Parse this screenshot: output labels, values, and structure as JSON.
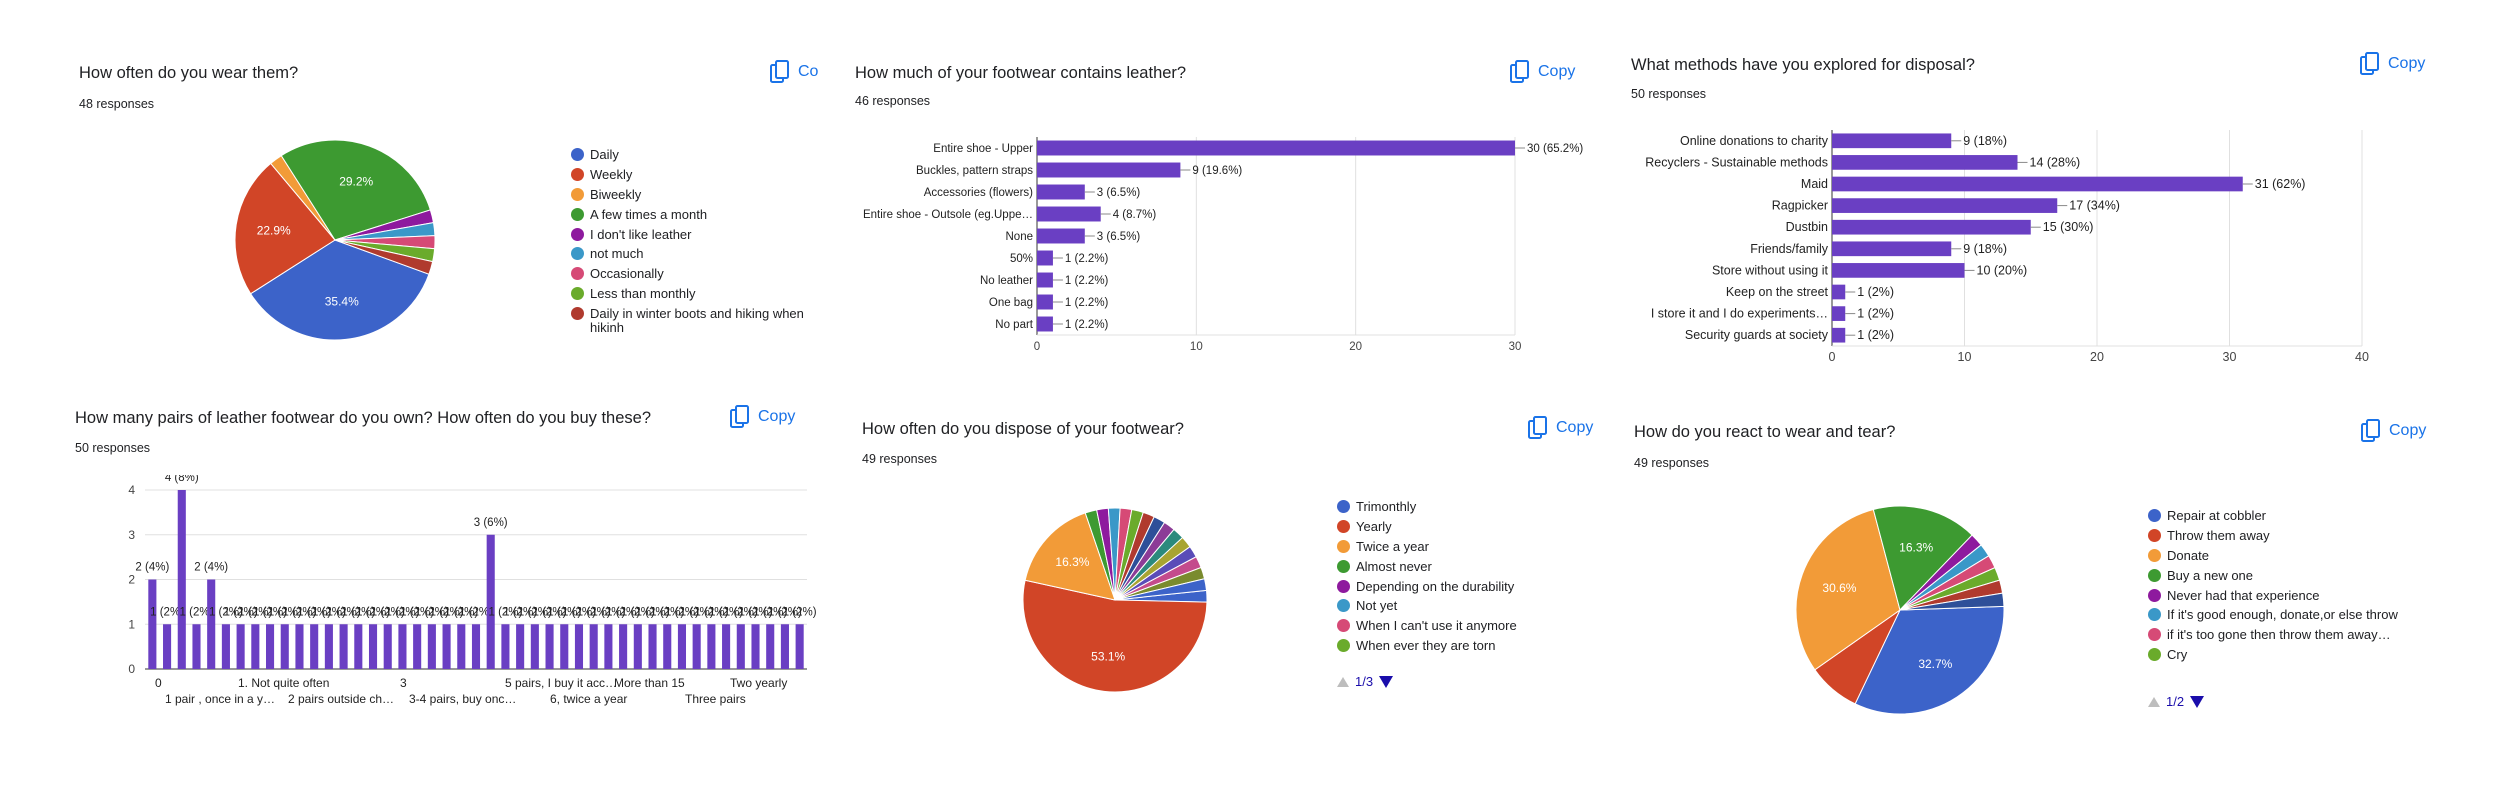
{
  "colors": {
    "bar": "#6a3fc3",
    "palette": [
      "#3c63c9",
      "#d14527",
      "#f29b38",
      "#3d9a31",
      "#8e1a9e",
      "#3a98c8",
      "#d64a76",
      "#6aab2b",
      "#b03a2e",
      "#2e4f99",
      "#8c3c97",
      "#2b8a7d",
      "#a8a432",
      "#5a4cb8",
      "#c44b8c",
      "#7a8b2e"
    ]
  },
  "icons": {
    "copy": "copy-icon",
    "pager_prev": "triangle-up-icon",
    "pager_next": "triangle-down-icon"
  },
  "cards": [
    {
      "title": "How often do you wear them?",
      "responses": "48 responses",
      "copy_label": "Co",
      "legend": [
        "Daily",
        "Weekly",
        "Biweekly",
        "A few times a month",
        "I don't like leather",
        "not much",
        "Occasionally",
        "Less than monthly",
        "Daily in winter boots and hiking when hikinh"
      ]
    },
    {
      "title": "How much of your footwear contains leather?",
      "responses": "46 responses",
      "copy_label": "Copy"
    },
    {
      "title": "What methods have you explored for disposal?",
      "responses": "50 responses",
      "copy_label": "Copy"
    },
    {
      "title": "How many pairs of leather footwear do you own? How often do you buy these?",
      "responses": "50 responses",
      "copy_label": "Copy"
    },
    {
      "title": "How often do you dispose of your footwear?",
      "responses": "49 responses",
      "copy_label": "Copy",
      "legend": [
        "Trimonthly",
        "Yearly",
        "Twice a year",
        "Almost never",
        "Depending on the durability",
        "Not yet",
        "When I can't use it anymore",
        "When ever they are torn"
      ],
      "pager": "1/3"
    },
    {
      "title": "How do you react to wear and tear?",
      "responses": "49 responses",
      "copy_label": "Copy",
      "legend": [
        "Repair at cobbler",
        "Throw them away",
        "Donate",
        "Buy a new one",
        "Never had that experience",
        "If it's good enough, donate,or else throw",
        "if it's too gone then throw them away…",
        "Cry"
      ],
      "pager": "1/2"
    }
  ],
  "chart_data": [
    {
      "type": "pie",
      "title": "How often do you wear them?",
      "labels": [
        "Daily",
        "Weekly",
        "Biweekly",
        "A few times a month",
        "I don't like leather",
        "not much",
        "Occasionally",
        "Less than monthly",
        "Daily in winter boots and hiking when hikinh"
      ],
      "values": [
        17,
        11,
        1,
        14,
        1,
        1,
        1,
        1,
        1
      ],
      "slice_labels": [
        "35.4%",
        "22.9%",
        "",
        "29.2%",
        "",
        "",
        "",
        "",
        ""
      ]
    },
    {
      "type": "bar",
      "orientation": "horizontal",
      "title": "How much of your footwear contains leather?",
      "categories": [
        "Entire shoe - Upper",
        "Buckles, pattern straps",
        "Accessories (flowers)",
        "Entire shoe - Outsole (eg.Uppe…",
        "None",
        "50%",
        "No leather",
        "One bag",
        "No part"
      ],
      "values": [
        30,
        9,
        3,
        4,
        3,
        1,
        1,
        1,
        1
      ],
      "data_labels": [
        "30 (65.2%)",
        "9 (19.6%)",
        "3 (6.5%)",
        "4 (8.7%)",
        "3 (6.5%)",
        "1 (2.2%)",
        "1 (2.2%)",
        "1 (2.2%)",
        "1 (2.2%)"
      ],
      "xlim": [
        0,
        30
      ],
      "xticks": [
        "0",
        "10",
        "20",
        "30"
      ]
    },
    {
      "type": "bar",
      "orientation": "horizontal",
      "title": "What methods have you explored for disposal?",
      "categories": [
        "Online donations to charity",
        "Recyclers - Sustainable methods",
        "Maid",
        "Ragpicker",
        "Dustbin",
        "Friends/family",
        "Store without using it",
        "Keep on the street",
        "I store it and I do experiments…",
        "Security guards at society"
      ],
      "values": [
        9,
        14,
        31,
        17,
        15,
        9,
        10,
        1,
        1,
        1
      ],
      "data_labels": [
        "9 (18%)",
        "14 (28%)",
        "31 (62%)",
        "17 (34%)",
        "15 (30%)",
        "9 (18%)",
        "10 (20%)",
        "1 (2%)",
        "1 (2%)",
        "1 (2%)"
      ],
      "xlim": [
        0,
        40
      ],
      "xticks": [
        "0",
        "10",
        "20",
        "30",
        "40"
      ]
    },
    {
      "type": "bar",
      "title": "How many pairs of leather footwear do you own? How often do you buy these?",
      "values": [
        2,
        1,
        4,
        1,
        2,
        1,
        1,
        1,
        1,
        1,
        1,
        1,
        1,
        1,
        1,
        1,
        1,
        1,
        1,
        1,
        1,
        1,
        1,
        3,
        1,
        1,
        1,
        1,
        1,
        1,
        1,
        1,
        1,
        1,
        1,
        1,
        1,
        1,
        1,
        1,
        1,
        1,
        1,
        1,
        1
      ],
      "data_labels": [
        "2 (4%)",
        "1 (2%)",
        "4 (8%)",
        "1 (2%)",
        "2 (4%)",
        "1 (2%)",
        "1 (2%)",
        "1 (2%)",
        "1 (2%)",
        "1 (2%)",
        "1 (2%)",
        "1 (2%)",
        "1 (2%)",
        "1 (2%)",
        "1 (2%)",
        "1 (2%)",
        "1 (2%)",
        "1 (2%)",
        "1 (2%)",
        "1 (2%)",
        "1 (2%)",
        "1 (2%)",
        "1 (2%)",
        "3 (6%)",
        "1 (2%)",
        "1 (2%)",
        "1 (2%)",
        "1 (2%)",
        "1 (2%)",
        "1 (2%)",
        "1 (2%)",
        "1 (2%)",
        "1 (2%)",
        "1 (2%)",
        "1 (2%)",
        "1 (2%)",
        "1 (2%)",
        "1 (2%)",
        "1 (2%)",
        "1 (2%)",
        "1 (2%)",
        "1 (2%)",
        "1 (2%)",
        "1 (2%)",
        "1 (2%)"
      ],
      "category_labels_row1": [
        "0",
        "1. Not quite often",
        "3",
        "5 pairs, I buy it acc…",
        "More than 15",
        "Two yearly"
      ],
      "category_labels_row2": [
        "1 pair , once in a y…",
        "2 pairs outside ch…",
        "3-4 pairs, buy onc…",
        "6, twice a year",
        "Three pairs"
      ],
      "ylim": [
        0,
        4
      ],
      "yticks": [
        "0",
        "1",
        "2",
        "3",
        "4"
      ]
    },
    {
      "type": "pie",
      "title": "How often do you dispose of your footwear?",
      "labels": [
        "Trimonthly",
        "Yearly",
        "Twice a year",
        "Almost never",
        "Depending on the durability",
        "Not yet",
        "When I can't use it anymore",
        "When ever they are torn",
        "",
        "",
        "",
        "",
        "",
        "",
        "",
        "",
        ""
      ],
      "values": [
        1,
        26,
        8,
        1,
        1,
        1,
        1,
        1,
        1,
        1,
        1,
        1,
        1,
        1,
        1,
        1,
        1
      ],
      "slice_labels": [
        "",
        "53.1%",
        "16.3%",
        "",
        "",
        "",
        "",
        "",
        "",
        "",
        "",
        "",
        "",
        "",
        "",
        "",
        ""
      ]
    },
    {
      "type": "pie",
      "title": "How do you react to wear and tear?",
      "labels": [
        "Repair at cobbler",
        "Throw them away",
        "Donate",
        "Buy a new one",
        "Never had that experience",
        "If it's good enough, donate,or else throw",
        "if it's too gone then throw them away…",
        "Cry",
        "",
        ""
      ],
      "values": [
        16,
        4,
        15,
        8,
        1,
        1,
        1,
        1,
        1,
        1
      ],
      "slice_labels": [
        "32.7%",
        "",
        "30.6%",
        "16.3%",
        "",
        "",
        "",
        "",
        "",
        ""
      ]
    }
  ]
}
